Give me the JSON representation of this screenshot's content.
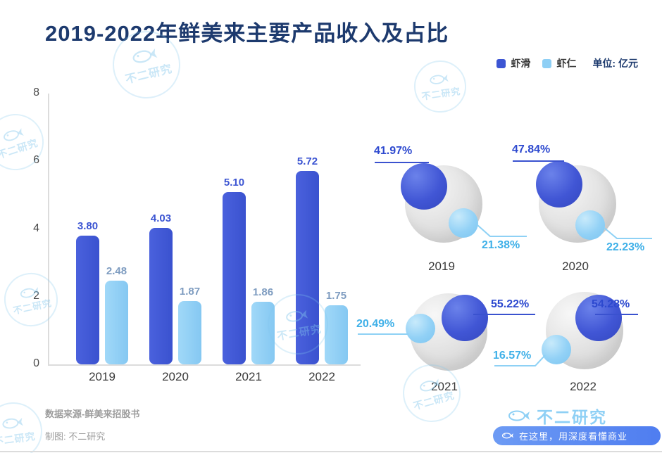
{
  "title": "2019-2022年鲜美来主要产品收入及占比",
  "legend": {
    "series1": "虾滑",
    "series2": "虾仁",
    "unit": "单位: 亿元"
  },
  "colors": {
    "title_navy": "#1d3a6e",
    "dark_blue": "#3b54d2",
    "light_blue": "#8ecff5",
    "pct_light_blue": "#3fb0e8",
    "sphere_gray": "#d9d9d9"
  },
  "chart_data": [
    {
      "type": "bar",
      "title": "2019-2022年鲜美来主要产品收入及占比",
      "categories": [
        "2019",
        "2020",
        "2021",
        "2022"
      ],
      "series": [
        {
          "name": "虾滑",
          "values": [
            3.8,
            4.03,
            5.1,
            5.72
          ],
          "display": [
            "3.80",
            "4.03",
            "5.10",
            "5.72"
          ]
        },
        {
          "name": "虾仁",
          "values": [
            2.48,
            1.87,
            1.86,
            1.75
          ],
          "display": [
            "2.48",
            "1.87",
            "1.86",
            "1.75"
          ]
        }
      ],
      "unit": "亿元",
      "ylim": [
        0,
        8
      ],
      "yticks": [
        0,
        2,
        4,
        6,
        8
      ],
      "grid": false,
      "legend_position": "top-right"
    },
    {
      "type": "bubble",
      "note": "revenue share of each product per year",
      "groups": [
        {
          "year": "2019",
          "xiahua_pct": "41.97%",
          "xiaren_pct": "21.38%"
        },
        {
          "year": "2020",
          "xiahua_pct": "47.84%",
          "xiaren_pct": "22.23%"
        },
        {
          "year": "2021",
          "xiahua_pct": "55.22%",
          "xiaren_pct": "20.49%"
        },
        {
          "year": "2022",
          "xiahua_pct": "54.28%",
          "xiaren_pct": "16.57%"
        }
      ]
    }
  ],
  "footer": {
    "source": "数据来源-鲜美来招股书",
    "credit": "制图: 不二研究",
    "brand": "不二研究",
    "slogan": "在这里，用深度看懂商业"
  },
  "watermark": "不二研究"
}
